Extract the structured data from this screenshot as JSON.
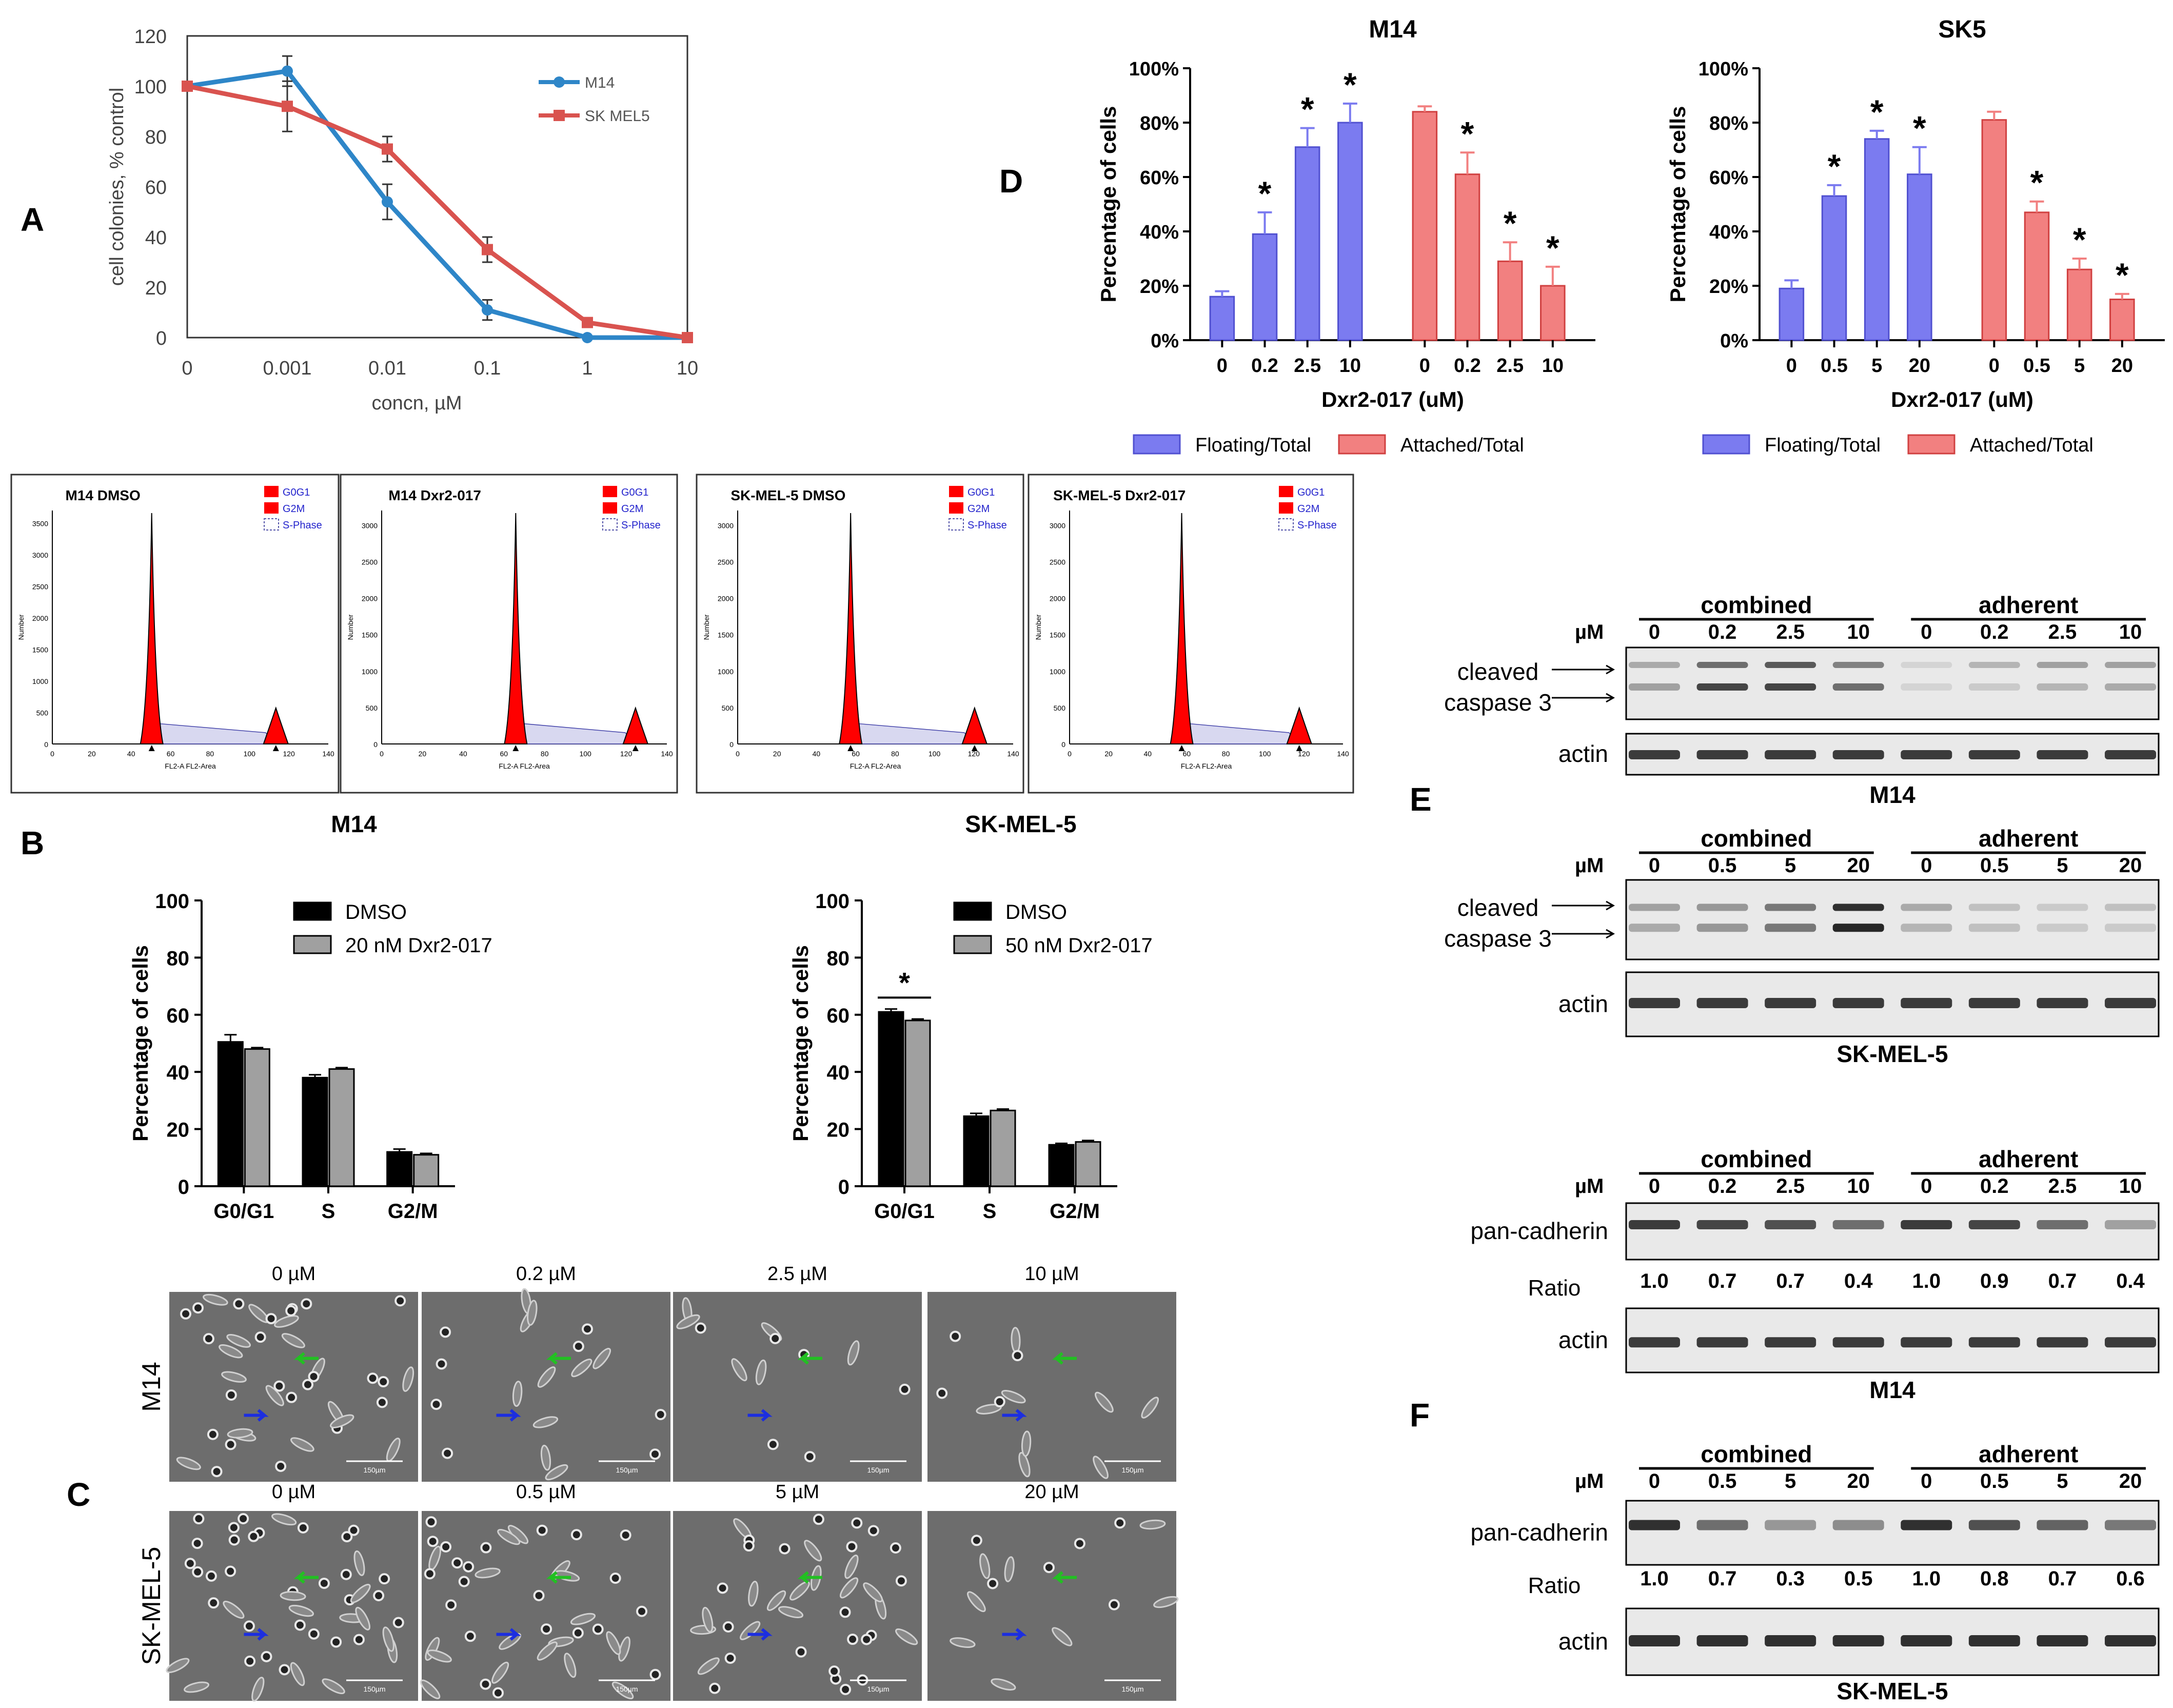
{
  "panel_letters": {
    "a": "A",
    "b": "B",
    "c": "C",
    "d": "D",
    "e": "E",
    "f": "F"
  },
  "colors": {
    "m14": "#2e86c8",
    "skmel5": "#d9534f",
    "blue": "#7b7bf0",
    "blue_stroke": "#5050d0",
    "red": "#f28080",
    "red_stroke": "#d04040",
    "dmso": "#000000",
    "drug": "#a0a0a0",
    "flow_red": "#ff0000",
    "micro_bg": "#6d6d6d",
    "blot_bg": "#e9e9e9",
    "band": "#1c1c1c"
  },
  "chart_data": [
    {
      "id": "A",
      "type": "line",
      "x_categories": [
        "0",
        "0.001",
        "0.01",
        "0.1",
        "1",
        "10"
      ],
      "xlabel": "concn, µM",
      "ylabel": "cell colonies, % control",
      "ylim": [
        0,
        120
      ],
      "yticks": [
        0,
        20,
        40,
        60,
        80,
        100,
        120
      ],
      "series": [
        {
          "name": "M14",
          "values": [
            100,
            106,
            54,
            11,
            0,
            0
          ],
          "errors": [
            0,
            6,
            7,
            4,
            0,
            0
          ]
        },
        {
          "name": "SK MEL5",
          "values": [
            100,
            92,
            75,
            35,
            6,
            0
          ],
          "errors": [
            0,
            10,
            5,
            5,
            0,
            0
          ]
        }
      ]
    },
    {
      "id": "D-M14",
      "type": "bar",
      "title": "M14",
      "categories": [
        "0",
        "0.2",
        "2.5",
        "10",
        "0",
        "0.2",
        "2.5",
        "10"
      ],
      "groups": [
        "Floating/Total",
        "Floating/Total",
        "Floating/Total",
        "Floating/Total",
        "Attached/Total",
        "Attached/Total",
        "Attached/Total",
        "Attached/Total"
      ],
      "values": [
        16,
        39,
        71,
        80,
        84,
        61,
        29,
        20
      ],
      "errors": [
        2,
        8,
        7,
        7,
        2,
        8,
        7,
        7
      ],
      "significant": [
        false,
        true,
        true,
        true,
        false,
        true,
        true,
        true
      ],
      "star": "*",
      "xlabel": "Dxr2-017 (uM)",
      "ylabel": "Percentage of cells",
      "ylim": [
        0,
        100
      ],
      "yticks": [
        "0%",
        "20%",
        "40%",
        "60%",
        "80%",
        "100%"
      ]
    },
    {
      "id": "D-SK5",
      "type": "bar",
      "title": "SK5",
      "categories": [
        "0",
        "0.5",
        "5",
        "20",
        "0",
        "0.5",
        "5",
        "20"
      ],
      "groups": [
        "Floating/Total",
        "Floating/Total",
        "Floating/Total",
        "Floating/Total",
        "Attached/Total",
        "Attached/Total",
        "Attached/Total",
        "Attached/Total"
      ],
      "values": [
        19,
        53,
        74,
        61,
        81,
        47,
        26,
        15
      ],
      "errors": [
        3,
        4,
        3,
        10,
        3,
        4,
        4,
        2
      ],
      "significant": [
        false,
        true,
        true,
        true,
        false,
        true,
        true,
        true
      ],
      "star": "*",
      "xlabel": "Dxr2-017 (uM)",
      "ylabel": "Percentage of cells",
      "ylim": [
        0,
        100
      ],
      "yticks": [
        "0%",
        "20%",
        "40%",
        "60%",
        "80%",
        "100%"
      ]
    },
    {
      "id": "B-M14",
      "type": "bar",
      "title": "M14",
      "categories": [
        "G0/G1",
        "S",
        "G2/M"
      ],
      "series": [
        {
          "name": "DMSO",
          "values": [
            50.5,
            38,
            12
          ],
          "errors": [
            2.5,
            1,
            1
          ]
        },
        {
          "name": "20 nM Dxr2-017",
          "values": [
            48,
            41,
            11
          ],
          "errors": [
            0.5,
            0.5,
            0.5
          ]
        }
      ],
      "ylabel": "Percentage of cells",
      "ylim": [
        0,
        100
      ],
      "yticks": [
        "0",
        "20",
        "40",
        "60",
        "80",
        "100"
      ]
    },
    {
      "id": "B-SKMEL5",
      "type": "bar",
      "title": "SK-MEL-5",
      "categories": [
        "G0/G1",
        "S",
        "G2/M"
      ],
      "series": [
        {
          "name": "DMSO",
          "values": [
            61,
            24.5,
            14.5
          ],
          "errors": [
            1,
            1,
            0.5
          ]
        },
        {
          "name": "50 nM Dxr2-017",
          "values": [
            58,
            26.5,
            15.5
          ],
          "errors": [
            0.5,
            0.5,
            0.5
          ]
        }
      ],
      "significance": "*",
      "ylabel": "Percentage of cells",
      "ylim": [
        0,
        100
      ],
      "yticks": [
        "0",
        "20",
        "40",
        "60",
        "80",
        "100"
      ]
    }
  ],
  "flow": {
    "legend": [
      "G0G1",
      "G2M",
      "S-Phase"
    ],
    "ylabel": "Number",
    "xlabel": "FL2-A FL2-Area",
    "xticks": [
      "0",
      "20",
      "40",
      "60",
      "80",
      "100",
      "120",
      "140"
    ],
    "panels": [
      {
        "title": "M14 DMSO",
        "yticks": [
          "0",
          "500",
          "1000",
          "1500",
          "2000",
          "2500",
          "3000",
          "3500"
        ]
      },
      {
        "title": "M14 Dxr2-017",
        "yticks": [
          "0",
          "500",
          "1000",
          "1500",
          "2000",
          "2500",
          "3000"
        ]
      },
      {
        "title": "SK-MEL-5 DMSO",
        "yticks": [
          "0",
          "500",
          "1000",
          "1500",
          "2000",
          "2500",
          "3000"
        ]
      },
      {
        "title": "SK-MEL-5 Dxr2-017",
        "yticks": [
          "0",
          "500",
          "1000",
          "1500",
          "2000",
          "2500",
          "3000"
        ]
      }
    ],
    "group_labels": [
      "M14",
      "SK-MEL-5"
    ]
  },
  "micro": {
    "rows": [
      "M14",
      "SK-MEL-5"
    ],
    "m14_cols": [
      "0 µM",
      "0.2 µM",
      "2.5 µM",
      "10 µM"
    ],
    "sk_cols": [
      "0 µM",
      "0.5 µM",
      "5 µM",
      "20 µM"
    ],
    "scale": "150µm"
  },
  "blots": {
    "unit": "µM",
    "combined": "combined",
    "adherent": "adherent",
    "cleaved": "cleaved",
    "caspase": "caspase 3",
    "actin": "actin",
    "pan": "pan-cadherin",
    "ratio": "Ratio",
    "m14_conc": [
      "0",
      "0.2",
      "2.5",
      "10",
      "0",
      "0.2",
      "2.5",
      "10"
    ],
    "sk_conc": [
      "0",
      "0.5",
      "5",
      "20",
      "0",
      "0.5",
      "5",
      "20"
    ],
    "m14_ratio": [
      "1.0",
      "0.7",
      "0.7",
      "0.4",
      "1.0",
      "0.9",
      "0.7",
      "0.4"
    ],
    "sk_ratio": [
      "1.0",
      "0.7",
      "0.3",
      "0.5",
      "1.0",
      "0.8",
      "0.7",
      "0.6"
    ],
    "m14": "M14",
    "sk": "SK-MEL-5"
  }
}
